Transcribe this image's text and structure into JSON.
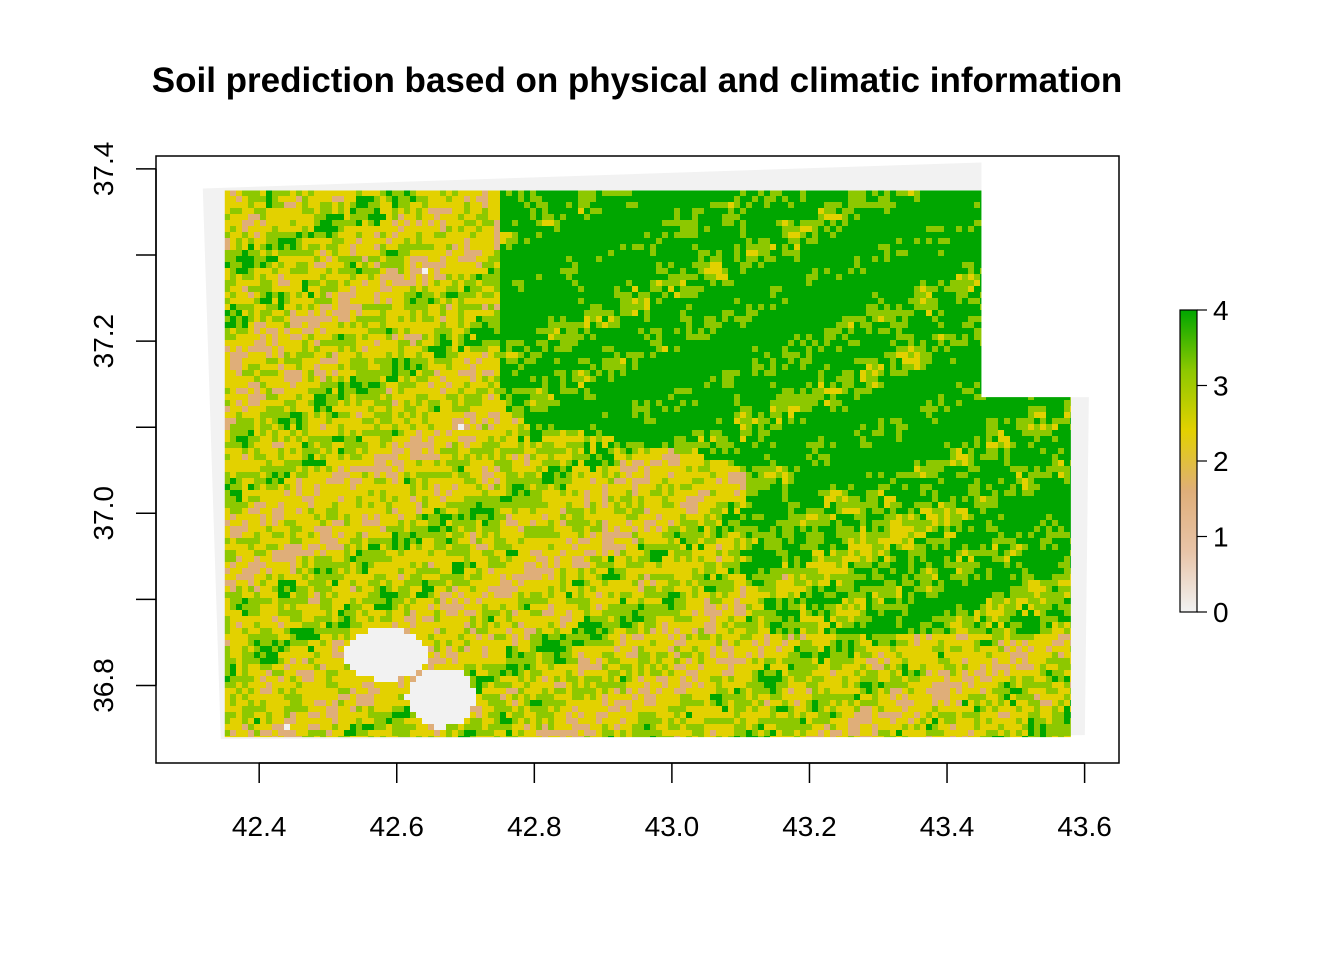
{
  "chart_data": {
    "type": "heatmap",
    "title": "Soil prediction based on physical and climatic information",
    "xlabel": "",
    "ylabel": "",
    "xlim": [
      42.25,
      43.65
    ],
    "ylim": [
      36.71,
      37.415
    ],
    "x_ticks": [
      {
        "value": 42.4,
        "label": "42.4"
      },
      {
        "value": 42.6,
        "label": "42.6"
      },
      {
        "value": 42.8,
        "label": "42.8"
      },
      {
        "value": 43.0,
        "label": "43.0"
      },
      {
        "value": 43.2,
        "label": "43.2"
      },
      {
        "value": 43.4,
        "label": "43.4"
      },
      {
        "value": 43.6,
        "label": "43.6"
      }
    ],
    "y_ticks": [
      {
        "value": 36.8,
        "label": "36.8",
        "labeled": true
      },
      {
        "value": 36.9,
        "label": "",
        "labeled": false
      },
      {
        "value": 37.0,
        "label": "37.0",
        "labeled": true
      },
      {
        "value": 37.1,
        "label": "",
        "labeled": false
      },
      {
        "value": 37.2,
        "label": "37.2",
        "labeled": true
      },
      {
        "value": 37.3,
        "label": "",
        "labeled": false
      },
      {
        "value": 37.4,
        "label": "37.4",
        "labeled": true
      }
    ],
    "raster_extent": {
      "x_range": [
        42.35,
        43.58
      ],
      "y_range": [
        36.74,
        37.375
      ],
      "notch_x": 43.45,
      "notch_y_top": 37.135,
      "nodata_color": "#f2f2f2"
    },
    "legend": {
      "placement": "right",
      "min": 0,
      "max": 4,
      "ticks": [
        {
          "value": 0,
          "label": "0"
        },
        {
          "value": 1,
          "label": "1"
        },
        {
          "value": 2,
          "label": "2"
        },
        {
          "value": 3,
          "label": "3"
        },
        {
          "value": 4,
          "label": "4"
        }
      ],
      "colors": [
        "#f2f2f2",
        "#e8c4a8",
        "#dfae79",
        "#e3d100",
        "#8dc800",
        "#00a600"
      ]
    },
    "grid": false
  }
}
